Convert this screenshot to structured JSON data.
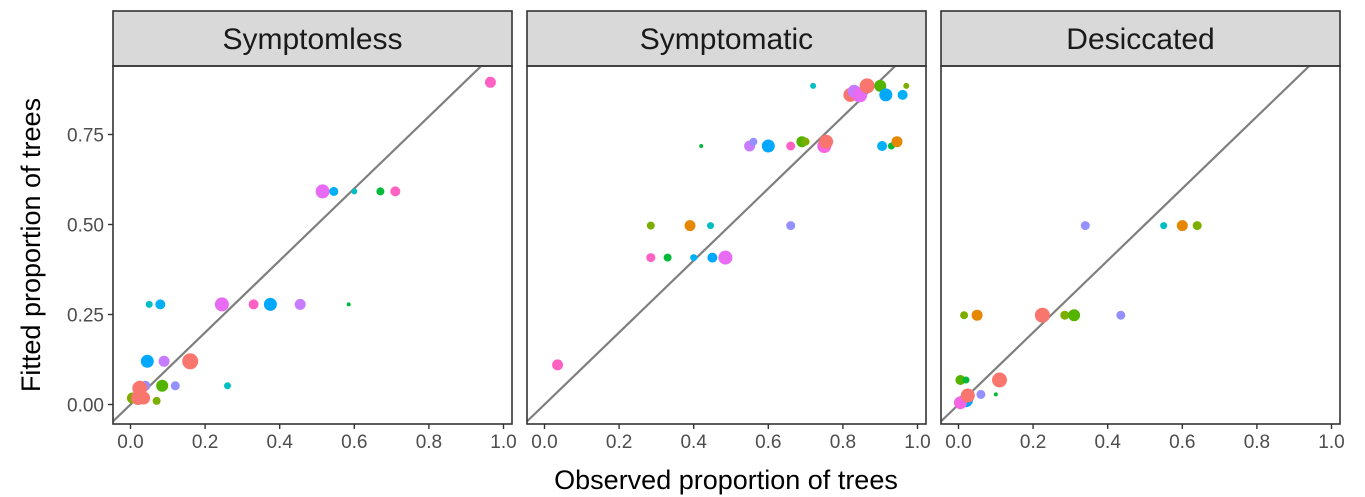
{
  "chart_data": {
    "type": "scatter",
    "xlabel": "Observed proportion of trees",
    "ylabel": "Fitted proportion of trees",
    "xlim": [
      -0.05,
      1.0
    ],
    "ylim": [
      -0.04,
      0.94
    ],
    "x_ticks": [
      0.0,
      0.2,
      0.4,
      0.6,
      0.8,
      1.0
    ],
    "x_tick_labels": [
      "0.0",
      "0.2",
      "0.4",
      "0.6",
      "0.8",
      "1.0"
    ],
    "y_ticks": [
      0.0,
      0.25,
      0.5,
      0.75
    ],
    "y_tick_labels": [
      "0.00",
      "0.25",
      "0.50",
      "0.75"
    ],
    "reference_line": "y = x",
    "grid": false,
    "legend": "none",
    "colors": {
      "pink": "#f564e3",
      "magenta": "#e76bf3",
      "rose": "#ff61c3",
      "salmon": "#f8766d",
      "violet": "#c77cff",
      "lavender": "#9590ff",
      "blue": "#00a9ff",
      "sky": "#00b0f6",
      "teal": "#00bfc4",
      "green": "#00ba38",
      "leaf": "#53b400",
      "olive": "#7cae00",
      "orange": "#e58700",
      "line": "#7f7f7f",
      "strip_fill": "#d9d9d9",
      "frame": "#333333"
    },
    "panels": [
      {
        "title": "Symptomless",
        "points": [
          {
            "x": 0.965,
            "y": 0.895,
            "size": 10,
            "color": "rose"
          },
          {
            "x": 0.515,
            "y": 0.592,
            "size": 13,
            "color": "magenta"
          },
          {
            "x": 0.545,
            "y": 0.592,
            "size": 8,
            "color": "sky"
          },
          {
            "x": 0.6,
            "y": 0.592,
            "size": 5,
            "color": "teal"
          },
          {
            "x": 0.67,
            "y": 0.592,
            "size": 7,
            "color": "green"
          },
          {
            "x": 0.71,
            "y": 0.592,
            "size": 9,
            "color": "rose"
          },
          {
            "x": 0.05,
            "y": 0.278,
            "size": 6,
            "color": "teal"
          },
          {
            "x": 0.08,
            "y": 0.278,
            "size": 9,
            "color": "sky"
          },
          {
            "x": 0.245,
            "y": 0.278,
            "size": 13,
            "color": "magenta"
          },
          {
            "x": 0.33,
            "y": 0.278,
            "size": 9,
            "color": "rose"
          },
          {
            "x": 0.375,
            "y": 0.278,
            "size": 12,
            "color": "blue"
          },
          {
            "x": 0.455,
            "y": 0.278,
            "size": 10,
            "color": "violet"
          },
          {
            "x": 0.585,
            "y": 0.278,
            "size": 3,
            "color": "green"
          },
          {
            "x": 0.045,
            "y": 0.12,
            "size": 12,
            "color": "blue"
          },
          {
            "x": 0.09,
            "y": 0.12,
            "size": 10,
            "color": "violet"
          },
          {
            "x": 0.16,
            "y": 0.12,
            "size": 15,
            "color": "salmon"
          },
          {
            "x": 0.04,
            "y": 0.052,
            "size": 9,
            "color": "lavender"
          },
          {
            "x": 0.085,
            "y": 0.052,
            "size": 11,
            "color": "leaf"
          },
          {
            "x": 0.12,
            "y": 0.052,
            "size": 8,
            "color": "lavender"
          },
          {
            "x": 0.26,
            "y": 0.052,
            "size": 6,
            "color": "teal"
          },
          {
            "x": 0.005,
            "y": 0.018,
            "size": 10,
            "color": "olive"
          },
          {
            "x": 0.02,
            "y": 0.018,
            "size": 13,
            "color": "salmon"
          },
          {
            "x": 0.035,
            "y": 0.018,
            "size": 12,
            "color": "salmon"
          },
          {
            "x": 0.07,
            "y": 0.01,
            "size": 7,
            "color": "olive"
          },
          {
            "x": 0.025,
            "y": 0.045,
            "size": 14,
            "color": "salmon"
          }
        ]
      },
      {
        "title": "Symptomatic",
        "points": [
          {
            "x": 0.72,
            "y": 0.885,
            "size": 5,
            "color": "teal"
          },
          {
            "x": 0.82,
            "y": 0.86,
            "size": 13,
            "color": "salmon"
          },
          {
            "x": 0.83,
            "y": 0.87,
            "size": 12,
            "color": "violet"
          },
          {
            "x": 0.845,
            "y": 0.86,
            "size": 14,
            "color": "magenta"
          },
          {
            "x": 0.865,
            "y": 0.885,
            "size": 14,
            "color": "salmon"
          },
          {
            "x": 0.9,
            "y": 0.885,
            "size": 11,
            "color": "leaf"
          },
          {
            "x": 0.915,
            "y": 0.86,
            "size": 12,
            "color": "blue"
          },
          {
            "x": 0.96,
            "y": 0.86,
            "size": 9,
            "color": "sky"
          },
          {
            "x": 0.97,
            "y": 0.885,
            "size": 5,
            "color": "olive"
          },
          {
            "x": 0.42,
            "y": 0.718,
            "size": 3,
            "color": "green"
          },
          {
            "x": 0.55,
            "y": 0.718,
            "size": 10,
            "color": "violet"
          },
          {
            "x": 0.56,
            "y": 0.73,
            "size": 7,
            "color": "lavender"
          },
          {
            "x": 0.6,
            "y": 0.718,
            "size": 12,
            "color": "blue"
          },
          {
            "x": 0.66,
            "y": 0.718,
            "size": 8,
            "color": "rose"
          },
          {
            "x": 0.69,
            "y": 0.73,
            "size": 10,
            "color": "leaf"
          },
          {
            "x": 0.7,
            "y": 0.73,
            "size": 7,
            "color": "olive"
          },
          {
            "x": 0.75,
            "y": 0.718,
            "size": 13,
            "color": "pink"
          },
          {
            "x": 0.755,
            "y": 0.73,
            "size": 13,
            "color": "salmon"
          },
          {
            "x": 0.905,
            "y": 0.718,
            "size": 9,
            "color": "sky"
          },
          {
            "x": 0.93,
            "y": 0.718,
            "size": 6,
            "color": "green"
          },
          {
            "x": 0.945,
            "y": 0.73,
            "size": 10,
            "color": "orange"
          },
          {
            "x": 0.285,
            "y": 0.497,
            "size": 7,
            "color": "olive"
          },
          {
            "x": 0.39,
            "y": 0.497,
            "size": 10,
            "color": "orange"
          },
          {
            "x": 0.445,
            "y": 0.497,
            "size": 6,
            "color": "teal"
          },
          {
            "x": 0.66,
            "y": 0.497,
            "size": 8,
            "color": "lavender"
          },
          {
            "x": 0.285,
            "y": 0.408,
            "size": 8,
            "color": "rose"
          },
          {
            "x": 0.33,
            "y": 0.408,
            "size": 7,
            "color": "green"
          },
          {
            "x": 0.4,
            "y": 0.408,
            "size": 6,
            "color": "sky"
          },
          {
            "x": 0.45,
            "y": 0.408,
            "size": 9,
            "color": "blue"
          },
          {
            "x": 0.485,
            "y": 0.408,
            "size": 13,
            "color": "magenta"
          },
          {
            "x": 0.035,
            "y": 0.11,
            "size": 10,
            "color": "rose"
          }
        ]
      },
      {
        "title": "Desiccated",
        "points": [
          {
            "x": 0.34,
            "y": 0.497,
            "size": 8,
            "color": "lavender"
          },
          {
            "x": 0.55,
            "y": 0.497,
            "size": 6,
            "color": "teal"
          },
          {
            "x": 0.6,
            "y": 0.497,
            "size": 10,
            "color": "orange"
          },
          {
            "x": 0.64,
            "y": 0.497,
            "size": 8,
            "color": "olive"
          },
          {
            "x": 0.015,
            "y": 0.248,
            "size": 7,
            "color": "olive"
          },
          {
            "x": 0.05,
            "y": 0.248,
            "size": 10,
            "color": "orange"
          },
          {
            "x": 0.225,
            "y": 0.248,
            "size": 14,
            "color": "salmon"
          },
          {
            "x": 0.285,
            "y": 0.248,
            "size": 8,
            "color": "olive"
          },
          {
            "x": 0.31,
            "y": 0.248,
            "size": 11,
            "color": "leaf"
          },
          {
            "x": 0.435,
            "y": 0.248,
            "size": 8,
            "color": "lavender"
          },
          {
            "x": 0.005,
            "y": 0.068,
            "size": 9,
            "color": "leaf"
          },
          {
            "x": 0.02,
            "y": 0.068,
            "size": 6,
            "color": "green"
          },
          {
            "x": 0.11,
            "y": 0.068,
            "size": 14,
            "color": "salmon"
          },
          {
            "x": 0.02,
            "y": 0.012,
            "size": 13,
            "color": "blue"
          },
          {
            "x": 0.06,
            "y": 0.028,
            "size": 8,
            "color": "lavender"
          },
          {
            "x": 0.1,
            "y": 0.028,
            "size": 3,
            "color": "green"
          },
          {
            "x": 0.005,
            "y": 0.005,
            "size": 12,
            "color": "pink"
          },
          {
            "x": 0.025,
            "y": 0.025,
            "size": 13,
            "color": "salmon"
          }
        ]
      }
    ]
  }
}
